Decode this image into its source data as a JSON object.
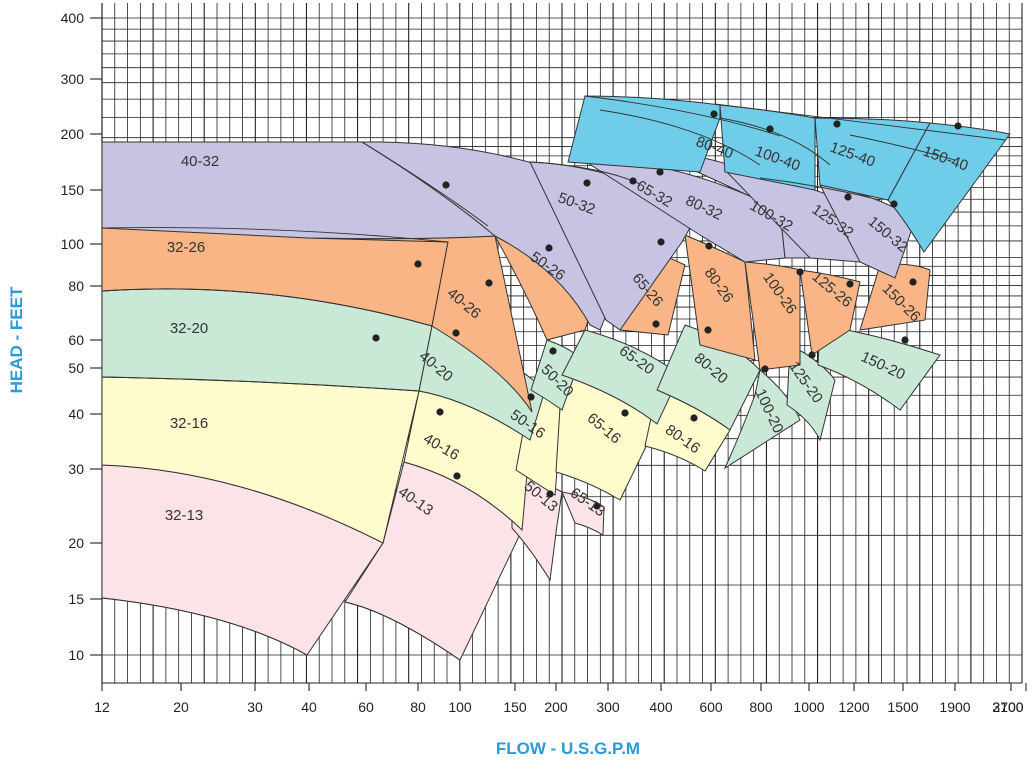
{
  "chart_data": {
    "type": "performance-curve",
    "xlabel": "FLOW - U.S.G.P.M",
    "ylabel": "HEAD - FEET",
    "x_tick_labels": [
      "12",
      "20",
      "30",
      "40",
      "60",
      "80",
      "100",
      "150",
      "200",
      "300",
      "400",
      "600",
      "800",
      "1000",
      "1200",
      "1500",
      "1900",
      "2700",
      "3100"
    ],
    "y_tick_labels": [
      "10",
      "15",
      "20",
      "30",
      "40",
      "50",
      "60",
      "80",
      "100",
      "150",
      "200",
      "300",
      "400"
    ],
    "grid": true,
    "colors": {
      "40": "#6fcdea",
      "32": "#c7c3e2",
      "26": "#f9b585",
      "20": "#cae8d6",
      "16": "#fefbcc",
      "13": "#fce3e8",
      "axis_title": "#2a9bd6"
    },
    "series": [
      {
        "name": "32-13",
        "family": "13"
      },
      {
        "name": "40-13",
        "family": "13"
      },
      {
        "name": "50-13",
        "family": "13"
      },
      {
        "name": "65-13",
        "family": "13"
      },
      {
        "name": "32-16",
        "family": "16"
      },
      {
        "name": "40-16",
        "family": "16"
      },
      {
        "name": "50-16",
        "family": "16"
      },
      {
        "name": "65-16",
        "family": "16"
      },
      {
        "name": "80-16",
        "family": "16"
      },
      {
        "name": "32-20",
        "family": "20"
      },
      {
        "name": "40-20",
        "family": "20"
      },
      {
        "name": "50-20",
        "family": "20"
      },
      {
        "name": "65-20",
        "family": "20"
      },
      {
        "name": "80-20",
        "family": "20"
      },
      {
        "name": "100-20",
        "family": "20"
      },
      {
        "name": "125-20",
        "family": "20"
      },
      {
        "name": "150-20",
        "family": "20"
      },
      {
        "name": "32-26",
        "family": "26"
      },
      {
        "name": "40-26",
        "family": "26"
      },
      {
        "name": "50-26",
        "family": "26"
      },
      {
        "name": "65-26",
        "family": "26"
      },
      {
        "name": "80-26",
        "family": "26"
      },
      {
        "name": "100-26",
        "family": "26"
      },
      {
        "name": "125-26",
        "family": "26"
      },
      {
        "name": "150-26",
        "family": "26"
      },
      {
        "name": "40-32",
        "family": "32"
      },
      {
        "name": "50-32",
        "family": "32"
      },
      {
        "name": "65-32",
        "family": "32"
      },
      {
        "name": "80-32",
        "family": "32"
      },
      {
        "name": "100-32",
        "family": "32"
      },
      {
        "name": "125-32",
        "family": "32"
      },
      {
        "name": "150-32",
        "family": "32"
      },
      {
        "name": "80-40",
        "family": "40"
      },
      {
        "name": "100-40",
        "family": "40"
      },
      {
        "name": "125-40",
        "family": "40"
      },
      {
        "name": "150-40",
        "family": "40"
      }
    ]
  }
}
